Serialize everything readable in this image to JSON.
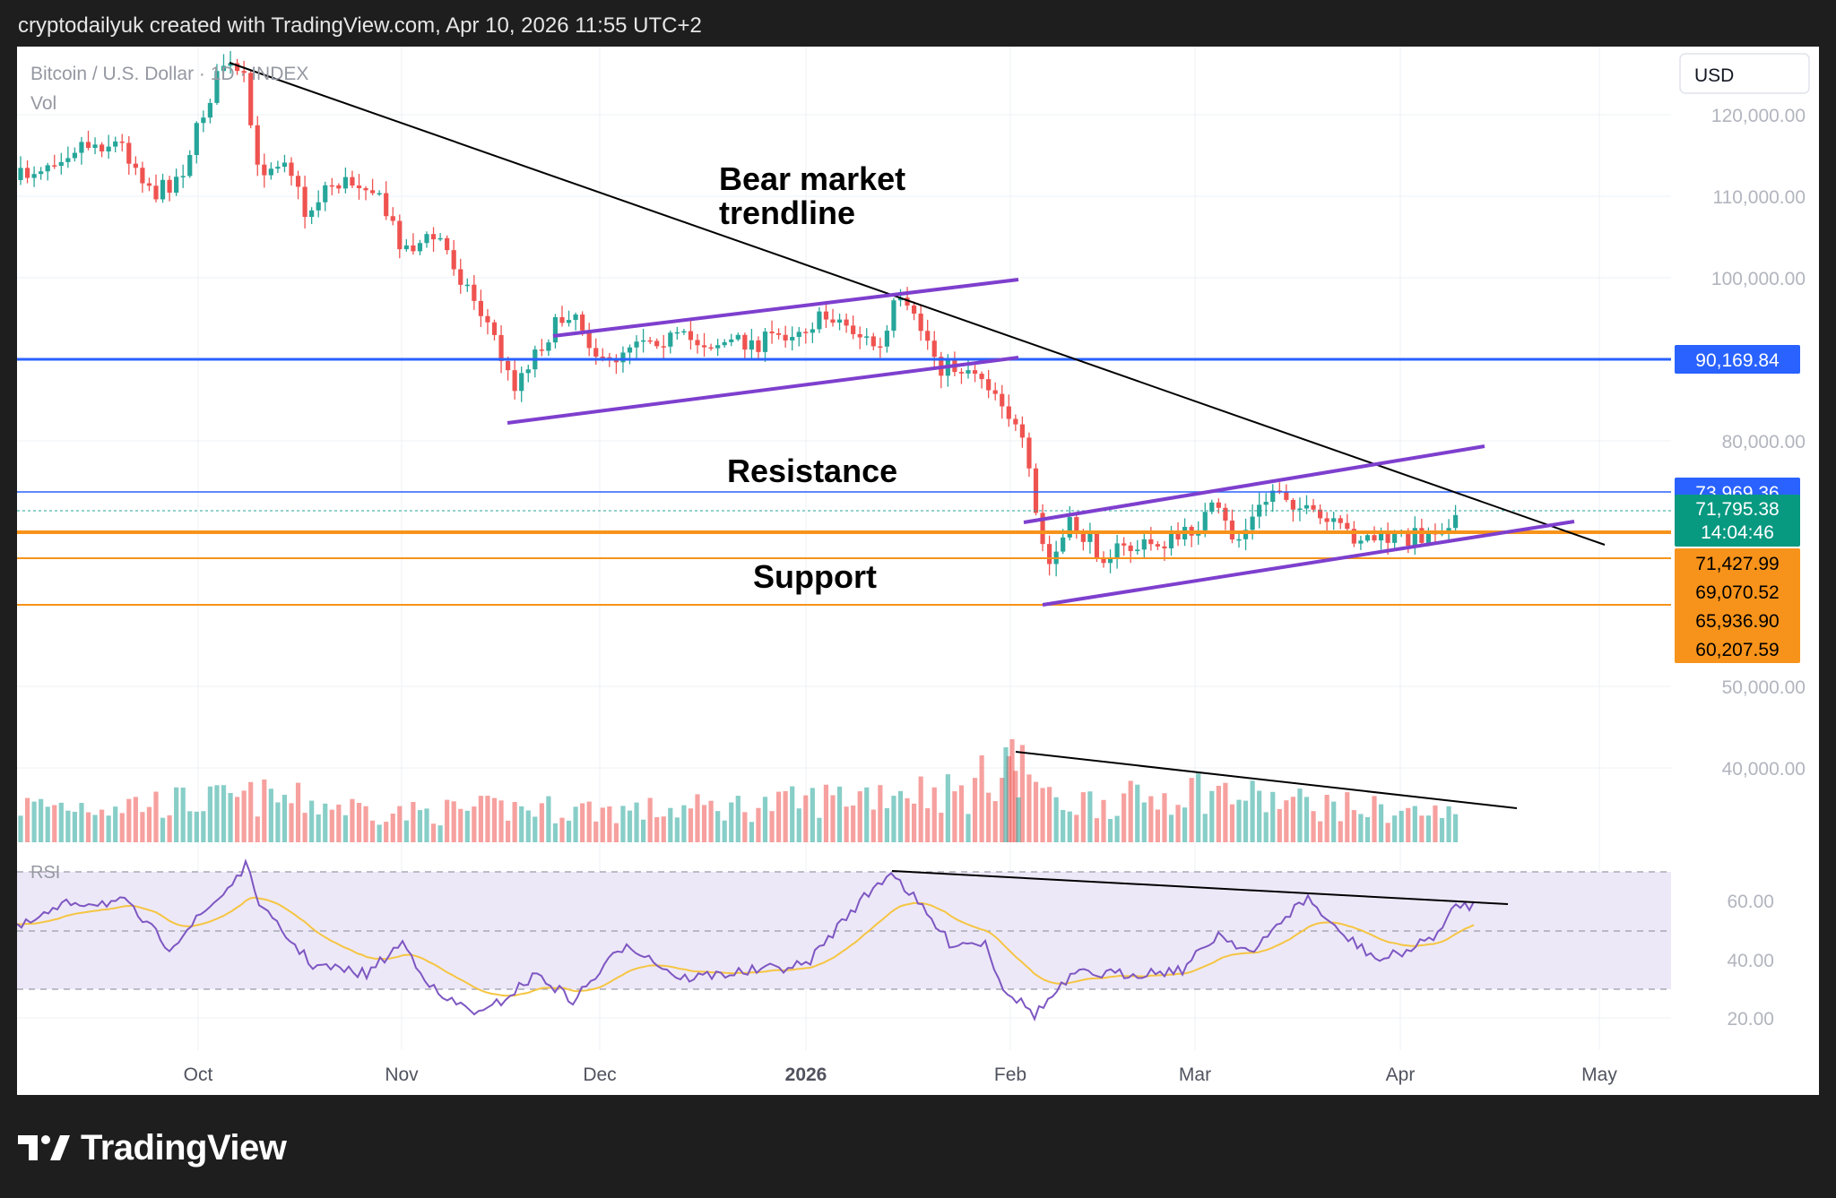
{
  "header": {
    "caption": "cryptodailyuk created with TradingView.com, Apr 10, 2026 11:55 UTC+2"
  },
  "chart": {
    "symbol": "Bitcoin / U.S. Dollar · 1D · INDEX",
    "volume_label": "Vol",
    "currency": "USD",
    "rsi_label": "RSI",
    "annotations": {
      "bear_line1": "Bear market",
      "bear_line2": "trendline",
      "resistance": "Resistance",
      "support": "Support"
    },
    "price_ticks": [
      "120,000.00",
      "110,000.00",
      "100,000.00",
      "80,000.00",
      "50,000.00",
      "40,000.00"
    ],
    "rsi_ticks": [
      "60.00",
      "40.00",
      "20.00"
    ],
    "x_ticks": [
      "Oct",
      "Nov",
      "Dec",
      "2026",
      "Feb",
      "Mar",
      "Apr",
      "May"
    ],
    "price_tags": {
      "level_90k": "90,169.84",
      "level_74k": "73,969.36",
      "current": "71,795.38",
      "countdown": "14:04:46",
      "level_71k": "71,427.99",
      "level_69k": "69,070.52",
      "level_66k": "65,936.90",
      "level_60k": "60,207.59"
    },
    "colors": {
      "up": "#26a69a",
      "down": "#ef5350",
      "channel": "#7e3fce",
      "level_blue": "#2962ff",
      "level_orange": "#f7931a",
      "trendline": "#000000",
      "rsi": "#7e57c2",
      "rsi_ma": "#f5c542"
    }
  },
  "footer": {
    "brand": "TradingView",
    "logo_icon": "tradingview-logo-icon"
  }
}
